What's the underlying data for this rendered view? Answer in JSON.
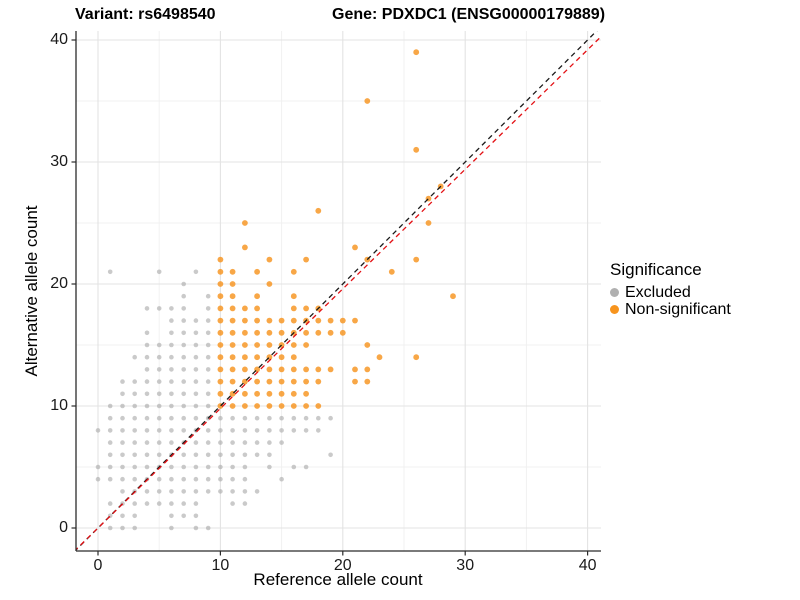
{
  "titles": {
    "left": "Variant: rs6498540",
    "right": "Gene: PDXDC1 (ENSG00000179889)"
  },
  "legend": {
    "title": "Significance",
    "items": [
      {
        "label": "Excluded",
        "color": "#B0B0B0"
      },
      {
        "label": "Non-significant",
        "color": "#F7941E"
      }
    ]
  },
  "chart_data": {
    "type": "scatter",
    "title": "Variant: rs6498540 / Gene: PDXDC1 (ENSG00000179889)",
    "xlabel": "Reference allele count",
    "ylabel": "Alternative allele count",
    "xlim": [
      -1.8,
      41.1
    ],
    "ylim": [
      -1.9,
      40.7
    ],
    "x_ticks": [
      0,
      10,
      20,
      30,
      40
    ],
    "y_ticks": [
      0,
      10,
      20,
      30,
      40
    ],
    "x_minor": [
      5,
      15,
      25,
      35
    ],
    "y_minor": [
      5,
      15,
      25,
      35
    ],
    "grid": true,
    "legend_position": "right",
    "series": [
      {
        "name": "Excluded",
        "color": "#A9A9A9",
        "opacity": 0.62,
        "radius": 2.3,
        "points_by_alt": {
          "0": [
            1,
            2,
            3,
            6,
            8,
            9
          ],
          "1": [
            1,
            2,
            3,
            6,
            7,
            8
          ],
          "2": [
            1,
            2,
            3,
            4,
            5,
            6,
            7,
            8,
            11,
            12
          ],
          "3": [
            2,
            3,
            4,
            5,
            6,
            7,
            8,
            9,
            10,
            11,
            12,
            13
          ],
          "4": [
            0,
            1,
            2,
            3,
            4,
            5,
            6,
            7,
            8,
            9,
            10,
            11,
            12,
            15
          ],
          "5": [
            0,
            1,
            2,
            3,
            4,
            5,
            6,
            7,
            8,
            9,
            10,
            11,
            12,
            14,
            16,
            17
          ],
          "6": [
            1,
            2,
            3,
            4,
            5,
            6,
            7,
            8,
            9,
            10,
            11,
            12,
            13,
            14,
            19
          ],
          "7": [
            1,
            2,
            3,
            4,
            5,
            6,
            7,
            8,
            9,
            10,
            11,
            12,
            13,
            14,
            15
          ],
          "8": [
            0,
            1,
            2,
            3,
            4,
            5,
            6,
            7,
            8,
            9,
            10,
            11,
            12,
            13,
            14,
            15,
            16,
            17,
            18
          ],
          "9": [
            1,
            2,
            3,
            4,
            5,
            6,
            7,
            8,
            9,
            10,
            11,
            12,
            13,
            14,
            15,
            16,
            17,
            18,
            19
          ],
          "10": [
            1,
            2,
            3,
            4,
            5,
            6,
            7,
            8,
            9
          ],
          "11": [
            2,
            3,
            4,
            5,
            6,
            7,
            8,
            9
          ],
          "12": [
            2,
            3,
            4,
            5,
            6,
            7,
            8,
            9
          ],
          "13": [
            4,
            5,
            6,
            7,
            8,
            9
          ],
          "14": [
            3,
            4,
            5,
            6,
            7,
            8,
            9
          ],
          "15": [
            4,
            5,
            6,
            7,
            8,
            9
          ],
          "16": [
            4,
            6,
            7,
            8,
            9
          ],
          "17": [
            6,
            7,
            8,
            9
          ],
          "18": [
            4,
            5,
            6,
            7,
            9
          ],
          "19": [
            7,
            9
          ],
          "20": [
            7
          ],
          "21": [
            1,
            5,
            8
          ]
        }
      },
      {
        "name": "Non-significant",
        "color": "#F7941E",
        "opacity": 0.82,
        "radius": 2.9,
        "points_by_alt": {
          "10": [
            10,
            11,
            12,
            13,
            14,
            15,
            16,
            17,
            18
          ],
          "11": [
            10,
            11,
            12,
            13,
            14,
            15,
            16,
            17
          ],
          "12": [
            10,
            11,
            12,
            13,
            14,
            15,
            16,
            17,
            18,
            21,
            22
          ],
          "13": [
            10,
            11,
            12,
            13,
            14,
            15,
            16,
            17,
            18,
            19,
            21,
            22
          ],
          "14": [
            10,
            11,
            12,
            13,
            14,
            15,
            16,
            23,
            26
          ],
          "15": [
            10,
            11,
            12,
            13,
            14,
            15,
            16,
            17,
            22
          ],
          "16": [
            10,
            11,
            12,
            13,
            14,
            15,
            16,
            17,
            18,
            19,
            20
          ],
          "17": [
            10,
            11,
            12,
            13,
            14,
            15,
            16,
            17,
            18,
            19,
            20,
            21
          ],
          "18": [
            10,
            11,
            12,
            13,
            16,
            17,
            18
          ],
          "19": [
            10,
            11,
            13,
            16,
            29
          ],
          "20": [
            10,
            11,
            14
          ],
          "21": [
            10,
            11,
            13,
            16,
            24
          ],
          "22": [
            10,
            14,
            17,
            22,
            26
          ],
          "23": [
            12,
            21
          ],
          "25": [
            12,
            27
          ],
          "26": [
            18
          ],
          "27": [
            27
          ],
          "28": [
            28
          ],
          "31": [
            26
          ],
          "35": [
            22
          ],
          "39": [
            26
          ]
        }
      }
    ],
    "lines": [
      {
        "name": "identity",
        "color": "#1A1A1A",
        "dash": "5 4",
        "slope": 1.0,
        "intercept": 0
      },
      {
        "name": "fit",
        "color": "#E31014",
        "dash": "5 4",
        "slope": 0.98,
        "intercept": 0
      }
    ]
  }
}
